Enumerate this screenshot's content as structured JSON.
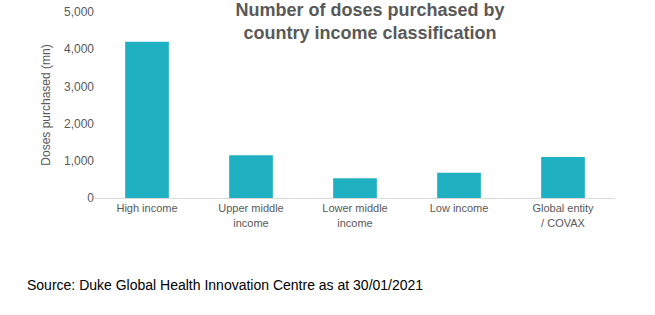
{
  "chart_data": {
    "type": "bar",
    "title": "Number of doses purchased by country income classification",
    "y_label": "Doses purchased (mn)",
    "categories": [
      "High income",
      "Upper middle income",
      "Lower middle income",
      "Low income",
      "Global entity / COVAX"
    ],
    "values": [
      4200,
      1150,
      530,
      680,
      1100
    ],
    "color": "#1fb0c2",
    "ylim": [
      0,
      5000
    ],
    "yticks": [
      0,
      {
        "value": 1000,
        "label": "1,000"
      },
      {
        "value": 2000,
        "label": "2,000"
      },
      {
        "value": 3000,
        "label": "3,000"
      },
      {
        "value": 4000,
        "label": "4,000"
      },
      {
        "value": 5000,
        "label": "5,000"
      }
    ],
    "grid": false,
    "source": "Source: Duke Global Health Innovation Centre as at 30/01/2021"
  }
}
